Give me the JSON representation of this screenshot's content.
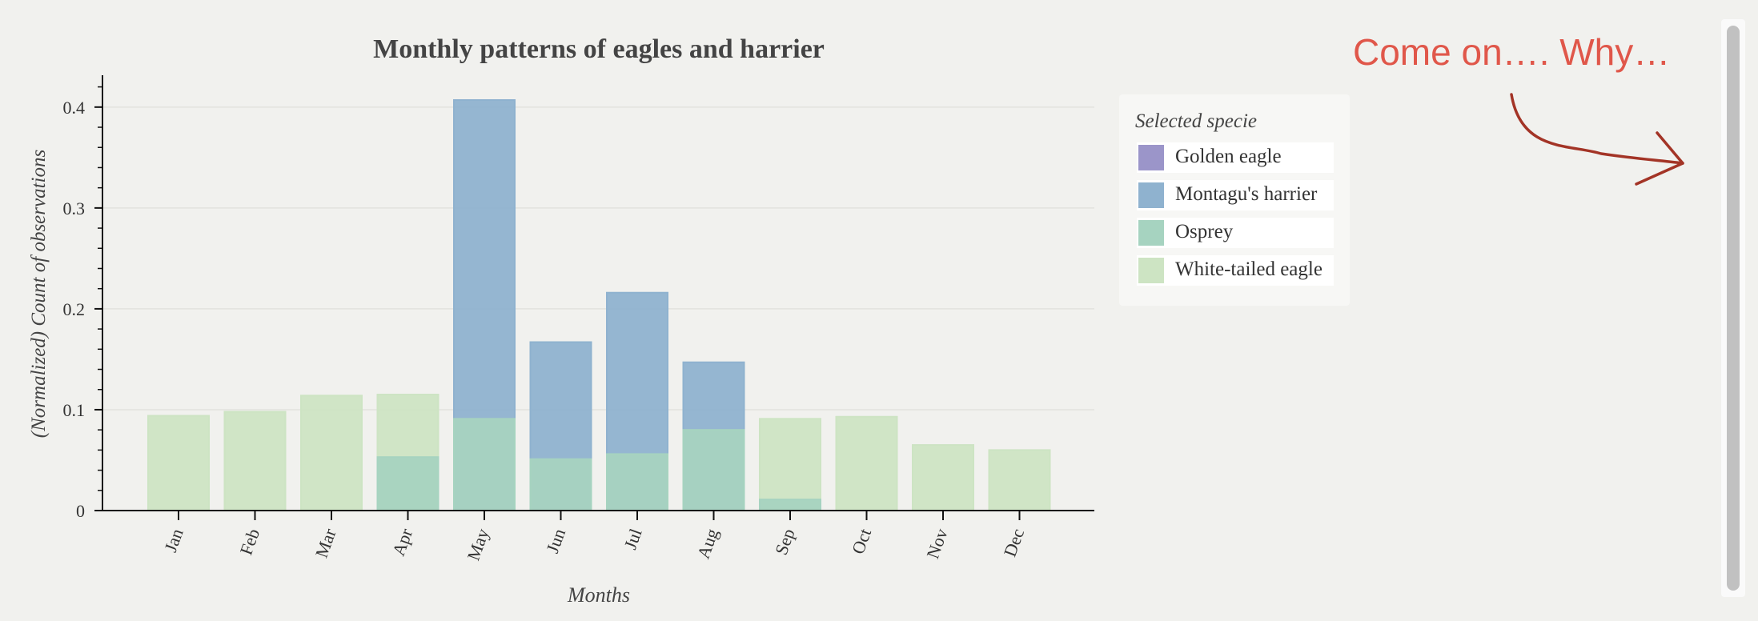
{
  "chart_data": {
    "type": "bar",
    "title": "Monthly patterns of eagles and harrier",
    "xlabel": "Months",
    "ylabel": "(Normalized) Count of observations",
    "categories": [
      "Jan",
      "Feb",
      "Mar",
      "Apr",
      "May",
      "Jun",
      "Jul",
      "Aug",
      "Sep",
      "Oct",
      "Nov",
      "Dec"
    ],
    "ylim": [
      0,
      0.43
    ],
    "yticks": [
      0,
      0.1,
      0.2,
      0.3,
      0.4
    ],
    "ytick_labels": [
      "0",
      "0.1",
      "0.2",
      "0.3",
      "0.4"
    ],
    "grid": true,
    "legend_title": "Selected specie",
    "legend_position": "right",
    "series": [
      {
        "name": "Golden eagle",
        "color": "#9b95c9",
        "values": [
          0,
          0,
          0,
          0,
          0,
          0,
          0,
          0,
          0,
          0,
          0,
          0
        ]
      },
      {
        "name": "Montagu's harrier",
        "color": "#8fb2cf",
        "values": [
          0,
          0,
          0,
          0,
          0.407,
          0.167,
          0.216,
          0.147,
          0,
          0,
          0,
          0
        ]
      },
      {
        "name": "Osprey",
        "color": "#a6d3c0",
        "values": [
          0,
          0,
          0,
          0.053,
          0.091,
          0.051,
          0.056,
          0.08,
          0.011,
          0,
          0,
          0
        ]
      },
      {
        "name": "White-tailed eagle",
        "color": "#cde4c3",
        "values": [
          0.094,
          0.098,
          0.114,
          0.115,
          0,
          0,
          0,
          0,
          0.091,
          0.093,
          0.065,
          0.06
        ]
      }
    ]
  },
  "annotation": {
    "text": "Come on…. Why…",
    "color": "#e0574a"
  }
}
